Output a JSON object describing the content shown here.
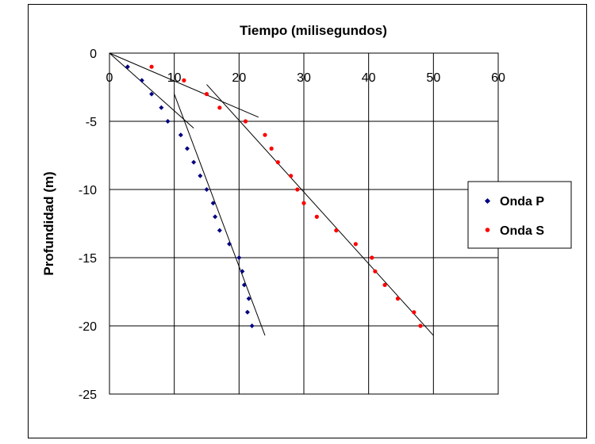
{
  "chart_data": {
    "type": "scatter",
    "title": "Tiempo (milisegundos)",
    "xlabel": "",
    "ylabel": "Profundidad (m)",
    "xlim": [
      0,
      60
    ],
    "ylim": [
      -25,
      0
    ],
    "x_ticks": [
      "0",
      "10",
      "20",
      "30",
      "40",
      "50",
      "60"
    ],
    "y_ticks": [
      "0",
      "-5",
      "-10",
      "-15",
      "-20",
      "-25"
    ],
    "x_axis_position": "top",
    "grid": true,
    "legend_position": "right",
    "series": [
      {
        "name": "Onda P",
        "color": "#000080",
        "marker": "diamond",
        "x": [
          2.8,
          5,
          6.5,
          8,
          9,
          11,
          12,
          13,
          14,
          15,
          16,
          16.3,
          17,
          18.5,
          20,
          20.5,
          20.8,
          21.5,
          21.3,
          22
        ],
        "y": [
          -1,
          -2,
          -3,
          -4,
          -5,
          -6,
          -7,
          -8,
          -9,
          -10,
          -11,
          -12,
          -13,
          -14,
          -15,
          -16,
          -17,
          -18,
          -19,
          -20
        ]
      },
      {
        "name": "Onda S",
        "color": "#ff0000",
        "marker": "circle",
        "x": [
          6.5,
          11.5,
          15,
          17,
          21,
          24,
          25,
          26,
          28,
          29,
          30,
          32,
          35,
          38,
          40.5,
          41,
          42.5,
          44.5,
          47,
          48
        ],
        "y": [
          -1,
          -2,
          -3,
          -4,
          -5,
          -6,
          -7,
          -8,
          -9,
          -10,
          -11,
          -12,
          -13,
          -14,
          -15,
          -16,
          -17,
          -18,
          -19,
          -20
        ]
      }
    ],
    "trendlines": [
      {
        "x": [
          0,
          13
        ],
        "y": [
          0,
          -5.5
        ]
      },
      {
        "x": [
          10,
          24
        ],
        "y": [
          -3,
          -20.7
        ]
      },
      {
        "x": [
          0,
          23
        ],
        "y": [
          0,
          -4.7
        ]
      },
      {
        "x": [
          15,
          50
        ],
        "y": [
          -2.3,
          -20.7
        ]
      }
    ]
  }
}
